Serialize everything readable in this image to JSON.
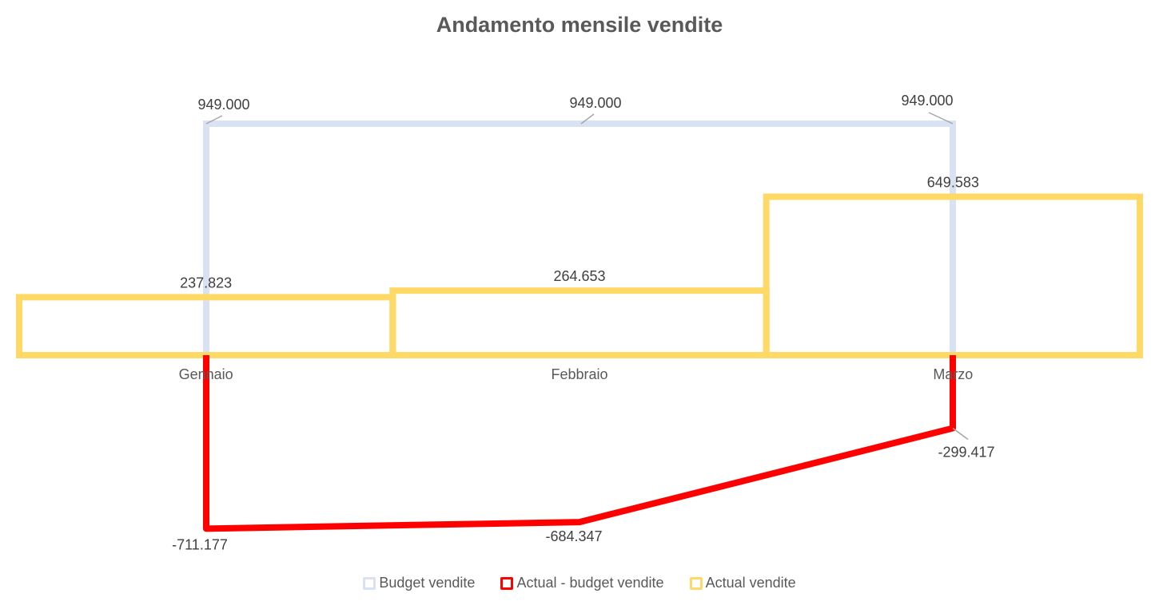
{
  "chart_data": {
    "type": "line",
    "title": "Andamento mensile vendite",
    "categories": [
      "Gennaio",
      "Febbraio",
      "Marzo"
    ],
    "series": [
      {
        "name": "Budget vendite",
        "kind": "step-line",
        "color": "#D9E2F3",
        "values": [
          949000,
          949000,
          949000
        ],
        "labels": [
          "949.000",
          "949.000",
          "949.000"
        ]
      },
      {
        "name": "Actual - budget vendite",
        "kind": "line",
        "color": "#FF0000",
        "values": [
          -711177,
          -684347,
          -299417
        ],
        "labels": [
          "-711.177",
          "-684.347",
          "-299.417"
        ]
      },
      {
        "name": "Actual vendite",
        "kind": "bar-outline",
        "color": "#FFD966",
        "values": [
          237823,
          264653,
          649583
        ],
        "labels": [
          "237.823",
          "264.653",
          "649.583"
        ]
      }
    ],
    "ylim": [
      -900000,
      1100000
    ],
    "grid": false,
    "legend_position": "bottom"
  }
}
